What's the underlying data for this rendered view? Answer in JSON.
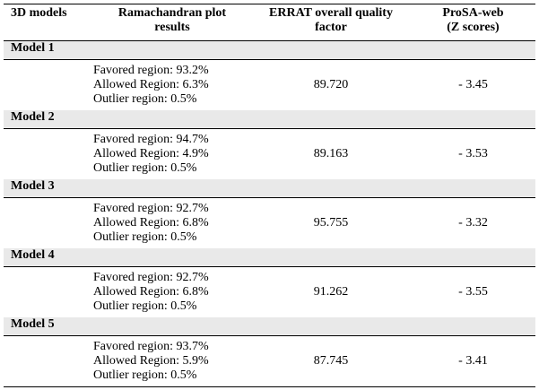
{
  "headers": {
    "col1": "3D models",
    "col2_line1": "Ramachandran plot",
    "col2_line2": "results",
    "col3_line1": "ERRAT overall quality",
    "col3_line2": "factor",
    "col4_line1": "ProSA-web",
    "col4_line2": "(Z scores)"
  },
  "models": [
    {
      "name": "Model 1",
      "favored": "Favored region: 93.2%",
      "allowed": "Allowed Region: 6.3%",
      "outlier": "Outlier region: 0.5%",
      "errat": "89.720",
      "prosa": "- 3.45"
    },
    {
      "name": "Model 2",
      "favored": "Favored region: 94.7%",
      "allowed": "Allowed Region: 4.9%",
      "outlier": "Outlier region: 0.5%",
      "errat": "89.163",
      "prosa": "- 3.53"
    },
    {
      "name": "Model 3",
      "favored": "Favored region: 92.7%",
      "allowed": "Allowed Region: 6.8%",
      "outlier": "Outlier region: 0.5%",
      "errat": "95.755",
      "prosa": "- 3.32"
    },
    {
      "name": "Model 4",
      "favored": "Favored region: 92.7%",
      "allowed": "Allowed Region: 6.8%",
      "outlier": "Outlier region: 0.5%",
      "errat": "91.262",
      "prosa": "- 3.55"
    },
    {
      "name": "Model 5",
      "favored": "Favored region: 93.7%",
      "allowed": "Allowed Region: 5.9%",
      "outlier": "Outlier region: 0.5%",
      "errat": "87.745",
      "prosa": "- 3.41"
    }
  ],
  "colors": {
    "model_row_bg": "#e9e9e9",
    "rule": "#000000"
  }
}
